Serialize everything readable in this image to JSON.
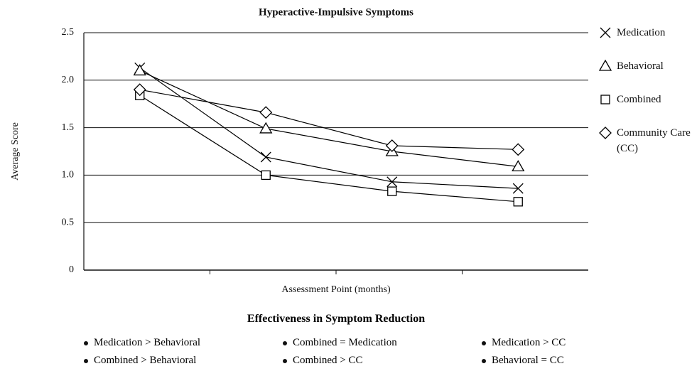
{
  "chart_data": {
    "type": "line",
    "title": "Hyperactive-Impulsive Symptoms",
    "x_label": "Assessment Point (months)",
    "y_label": "Average Score",
    "categories": [
      null,
      null,
      null,
      null
    ],
    "series": [
      {
        "name": "Medication",
        "color": "#000000",
        "marker": "x",
        "values": [
          2.13,
          1.19,
          0.93,
          0.86
        ]
      },
      {
        "name": "Behavioral",
        "color": "#000000",
        "marker": "triangle",
        "values": [
          2.1,
          1.49,
          1.25,
          1.09
        ]
      },
      {
        "name": "Combined",
        "color": "#000000",
        "marker": "square",
        "values": [
          1.84,
          1.0,
          0.83,
          0.72
        ]
      },
      {
        "name": "Community Care (CC)",
        "color": "#000000",
        "marker": "diamond",
        "values": [
          1.9,
          1.66,
          1.31,
          1.27
        ]
      }
    ],
    "ylim": [
      0,
      2.5
    ],
    "yticks": [
      0,
      0.5,
      {
        "value": 1,
        "label": "1.0"
      },
      1.5,
      {
        "value": 2,
        "label": "2.0"
      },
      2.5
    ],
    "grid": true,
    "legend": "right",
    "annotation_title": "Effectiveness in Symptom Reduction",
    "annotations": [
      "Medication > Behavioral",
      "Combined = Medication",
      "Medication > CC",
      "Combined > Behavioral",
      "Combined > CC",
      "Behavioral = CC"
    ]
  }
}
